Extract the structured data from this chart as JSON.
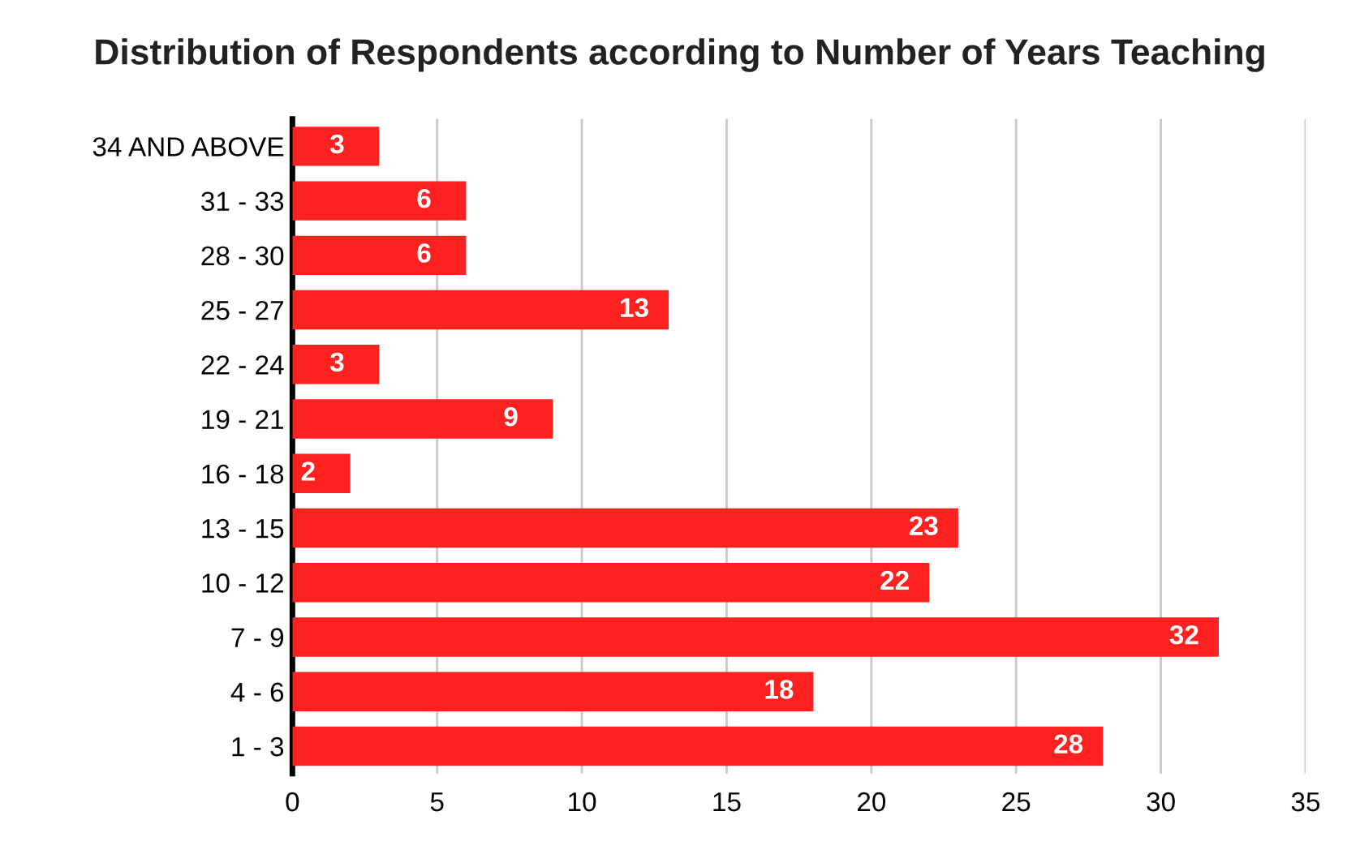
{
  "chart_data": {
    "type": "bar",
    "orientation": "horizontal",
    "title": "Distribution of Respondents according to Number of Years Teaching",
    "categories": [
      "34 AND ABOVE",
      "31 - 33",
      "28 - 30",
      "25 - 27",
      "22 - 24",
      "19 - 21",
      "16 - 18",
      "13 - 15",
      "10 - 12",
      "7 - 9",
      "4 - 6",
      "1 - 3"
    ],
    "values": [
      3,
      6,
      6,
      13,
      3,
      9,
      2,
      23,
      22,
      32,
      18,
      28
    ],
    "color": "#ff2020",
    "xlim": [
      0,
      35
    ],
    "xticks": [
      0,
      5,
      10,
      15,
      20,
      25,
      30,
      35
    ],
    "grid": "x",
    "data_labels": true
  }
}
